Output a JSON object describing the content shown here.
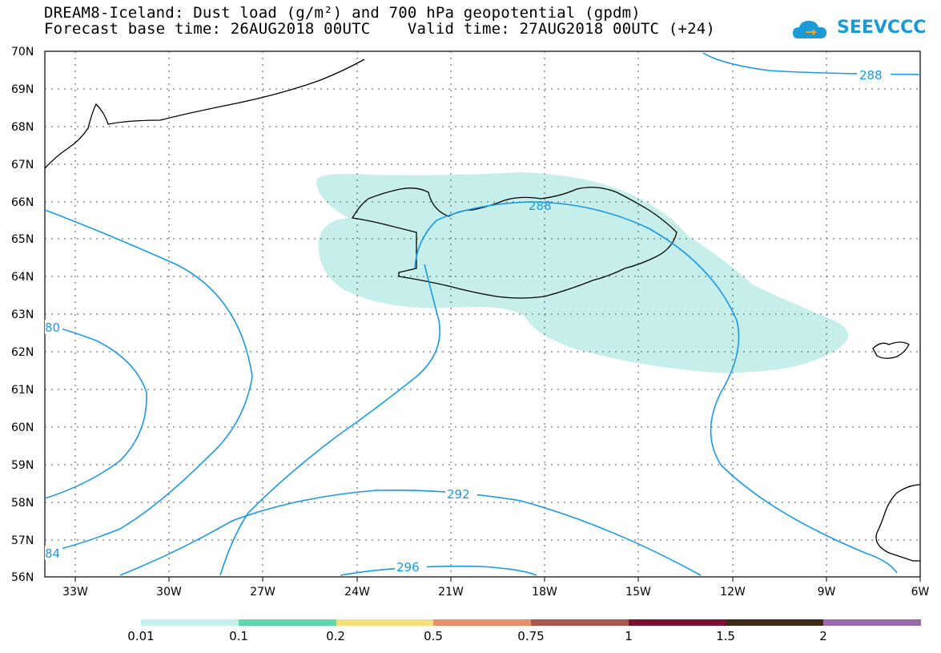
{
  "title": {
    "line1": "DREAM8-Iceland: Dust load (g/m²) and 700 hPa geopotential (gpdm)",
    "line2": "Forecast base time: 26AUG2018 00UTC    Valid time: 27AUG2018 00UTC (+24)"
  },
  "logo": {
    "text": "SEEVCCC",
    "icon": "cloud-logo-icon",
    "color": "#1a9ad6"
  },
  "map": {
    "lon_labels": [
      "33W",
      "30W",
      "27W",
      "24W",
      "21W",
      "18W",
      "15W",
      "12W",
      "9W",
      "6W"
    ],
    "lat_labels": [
      "70N",
      "69N",
      "68N",
      "67N",
      "66N",
      "65N",
      "64N",
      "63N",
      "62N",
      "61N",
      "60N",
      "59N",
      "58N",
      "57N",
      "56N"
    ],
    "lon_range": [
      -34,
      -6
    ],
    "lat_range": [
      56,
      70
    ],
    "contour_color": "#1a9ae6",
    "dust_fill_color": "#c6efeb",
    "contour_labels": [
      "288",
      "288",
      "80",
      "292",
      "296",
      "84"
    ]
  },
  "colorbar": {
    "labels": [
      "0.01",
      "0.1",
      "0.2",
      "0.5",
      "0.75",
      "1",
      "1.5",
      "2"
    ],
    "colors": [
      "#c6efeb",
      "#5ad9ad",
      "#f3e07a",
      "#e8906a",
      "#a8584e",
      "#7b1030",
      "#3d2a14",
      "#9a6aa6"
    ]
  }
}
